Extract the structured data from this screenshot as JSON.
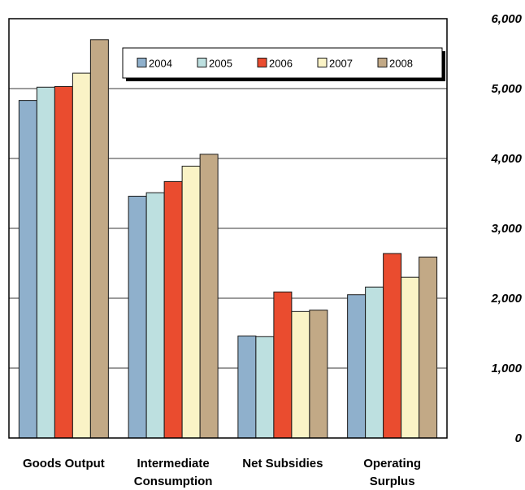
{
  "chart_data": {
    "type": "bar",
    "categories": [
      [
        "Goods Output"
      ],
      [
        "Intermediate",
        "Consumption"
      ],
      [
        "Net Subsidies"
      ],
      [
        "Operating",
        "Surplus"
      ]
    ],
    "series": [
      {
        "name": "2004",
        "color": "#8fb0cc",
        "values": [
          4830,
          3460,
          1460,
          2050
        ]
      },
      {
        "name": "2005",
        "color": "#bde0e0",
        "values": [
          5020,
          3510,
          1450,
          2160
        ]
      },
      {
        "name": "2006",
        "color": "#ea4c2f",
        "values": [
          5030,
          3670,
          2090,
          2640
        ]
      },
      {
        "name": "2007",
        "color": "#faf3c6",
        "values": [
          5220,
          3890,
          1810,
          2300
        ]
      },
      {
        "name": "2008",
        "color": "#c2a986",
        "values": [
          5700,
          4060,
          1830,
          2590
        ]
      }
    ],
    "yticks": [
      "0",
      "1,000",
      "2,000",
      "3,000",
      "4,000",
      "5,000",
      "6,000"
    ],
    "ylim": [
      0,
      6000
    ],
    "grid": true,
    "y_axis_side": "right",
    "legend_position": "top-right"
  }
}
